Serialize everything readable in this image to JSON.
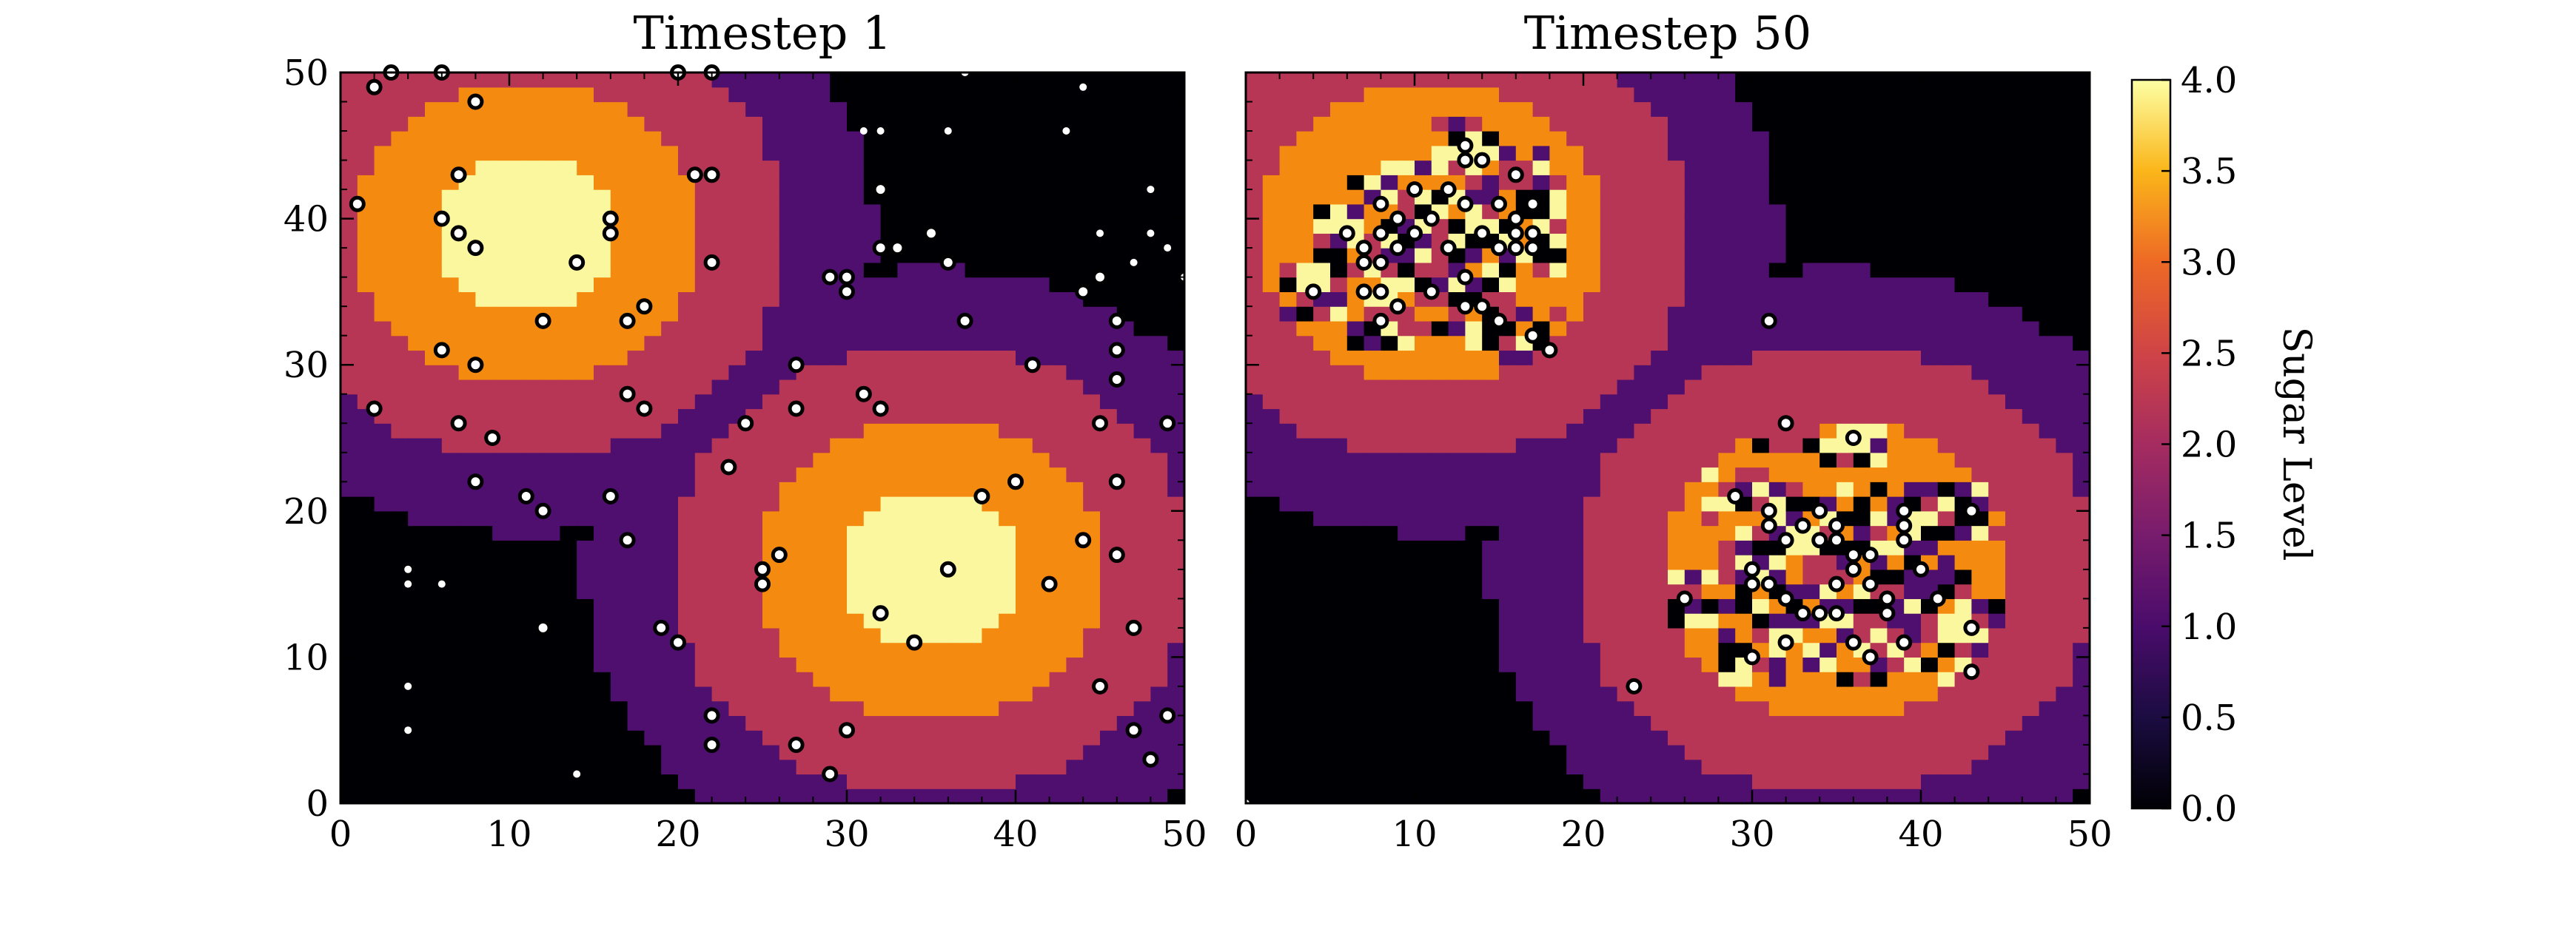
{
  "chart_data": {
    "type": "heatmap",
    "colormap": "inferno",
    "colorbar": {
      "label": "Sugar Level",
      "range": [
        0,
        4
      ],
      "tick_labels": [
        "0.0",
        "0.5",
        "1.0",
        "1.5",
        "2.0",
        "2.5",
        "3.0",
        "3.5",
        "4.0"
      ]
    },
    "panels": [
      {
        "title": "Timestep 1",
        "xlim": [
          0,
          50
        ],
        "ylim": [
          0,
          50
        ],
        "x_tick_labels": [
          "0",
          "10",
          "20",
          "30",
          "40",
          "50"
        ],
        "y_tick_labels": [
          "0",
          "10",
          "20",
          "30",
          "40",
          "50"
        ],
        "sugar_peaks": [
          [
            11,
            39
          ],
          [
            35,
            16
          ]
        ],
        "agents": [
          [
            2,
            49
          ],
          [
            3,
            50
          ],
          [
            6,
            50
          ],
          [
            8,
            48
          ],
          [
            20,
            50
          ],
          [
            22,
            50
          ],
          [
            7,
            43
          ],
          [
            21,
            43
          ],
          [
            22,
            43
          ],
          [
            1,
            41
          ],
          [
            6,
            40
          ],
          [
            16,
            40
          ],
          [
            7,
            39
          ],
          [
            16,
            39
          ],
          [
            8,
            38
          ],
          [
            14,
            37
          ],
          [
            22,
            37
          ],
          [
            12,
            33
          ],
          [
            17,
            33
          ],
          [
            18,
            34
          ],
          [
            6,
            31
          ],
          [
            8,
            30
          ],
          [
            17,
            28
          ],
          [
            18,
            27
          ],
          [
            2,
            27
          ],
          [
            7,
            26
          ],
          [
            9,
            25
          ],
          [
            8,
            22
          ],
          [
            16,
            21
          ],
          [
            11,
            21
          ],
          [
            12,
            20
          ],
          [
            17,
            18
          ],
          [
            12,
            12
          ],
          [
            19,
            12
          ],
          [
            20,
            11
          ],
          [
            22,
            6
          ],
          [
            22,
            4
          ],
          [
            27,
            30
          ],
          [
            27,
            27
          ],
          [
            24,
            26
          ],
          [
            23,
            23
          ],
          [
            29,
            36
          ],
          [
            30,
            36
          ],
          [
            30,
            35
          ],
          [
            31,
            28
          ],
          [
            32,
            27
          ],
          [
            32,
            42
          ],
          [
            32,
            38
          ],
          [
            33,
            38
          ],
          [
            35,
            39
          ],
          [
            36,
            37
          ],
          [
            37,
            33
          ],
          [
            41,
            30
          ],
          [
            45,
            36
          ],
          [
            44,
            35
          ],
          [
            46,
            33
          ],
          [
            46,
            31
          ],
          [
            46,
            29
          ],
          [
            45,
            26
          ],
          [
            49,
            26
          ],
          [
            38,
            21
          ],
          [
            40,
            22
          ],
          [
            46,
            22
          ],
          [
            44,
            18
          ],
          [
            46,
            17
          ],
          [
            25,
            16
          ],
          [
            25,
            15
          ],
          [
            26,
            17
          ],
          [
            36,
            16
          ],
          [
            42,
            15
          ],
          [
            32,
            13
          ],
          [
            34,
            11
          ],
          [
            47,
            12
          ],
          [
            45,
            8
          ],
          [
            49,
            6
          ],
          [
            47,
            5
          ],
          [
            48,
            3
          ],
          [
            30,
            5
          ],
          [
            27,
            4
          ],
          [
            29,
            2
          ]
        ],
        "small_dots": [
          [
            31,
            46
          ],
          [
            32,
            46
          ],
          [
            36,
            46
          ],
          [
            37,
            50
          ],
          [
            43,
            46
          ],
          [
            44,
            49
          ],
          [
            45,
            39
          ],
          [
            48,
            42
          ],
          [
            48,
            39
          ],
          [
            49,
            38
          ],
          [
            47,
            37
          ],
          [
            50,
            36
          ],
          [
            4,
            16
          ],
          [
            4,
            15
          ],
          [
            6,
            15
          ],
          [
            4,
            8
          ],
          [
            4,
            5
          ],
          [
            14,
            2
          ]
        ]
      },
      {
        "title": "Timestep 50",
        "xlim": [
          0,
          50
        ],
        "ylim": [
          0,
          50
        ],
        "x_tick_labels": [
          "0",
          "10",
          "20",
          "30",
          "40",
          "50"
        ],
        "y_tick_labels": [],
        "sugar_peaks": [
          [
            11,
            39
          ],
          [
            35,
            16
          ]
        ],
        "agents": [
          [
            13,
            45
          ],
          [
            13,
            44
          ],
          [
            14,
            44
          ],
          [
            16,
            43
          ],
          [
            10,
            42
          ],
          [
            12,
            42
          ],
          [
            8,
            41
          ],
          [
            13,
            41
          ],
          [
            15,
            41
          ],
          [
            17,
            41
          ],
          [
            9,
            40
          ],
          [
            11,
            40
          ],
          [
            16,
            40
          ],
          [
            6,
            39
          ],
          [
            8,
            39
          ],
          [
            10,
            39
          ],
          [
            14,
            39
          ],
          [
            16,
            39
          ],
          [
            17,
            39
          ],
          [
            9,
            38
          ],
          [
            12,
            38
          ],
          [
            7,
            38
          ],
          [
            15,
            38
          ],
          [
            17,
            38
          ],
          [
            16,
            38
          ],
          [
            8,
            37
          ],
          [
            7,
            37
          ],
          [
            13,
            36
          ],
          [
            4,
            35
          ],
          [
            7,
            35
          ],
          [
            8,
            35
          ],
          [
            11,
            35
          ],
          [
            9,
            34
          ],
          [
            13,
            34
          ],
          [
            14,
            34
          ],
          [
            15,
            33
          ],
          [
            8,
            33
          ],
          [
            17,
            32
          ],
          [
            18,
            31
          ],
          [
            31,
            33
          ],
          [
            32,
            26
          ],
          [
            36,
            25
          ],
          [
            29,
            21
          ],
          [
            31,
            20
          ],
          [
            34,
            20
          ],
          [
            39,
            20
          ],
          [
            43,
            20
          ],
          [
            31,
            19
          ],
          [
            33,
            19
          ],
          [
            35,
            19
          ],
          [
            39,
            19
          ],
          [
            32,
            18
          ],
          [
            34,
            18
          ],
          [
            35,
            18
          ],
          [
            39,
            18
          ],
          [
            36,
            17
          ],
          [
            37,
            17
          ],
          [
            30,
            16
          ],
          [
            36,
            16
          ],
          [
            40,
            16
          ],
          [
            30,
            15
          ],
          [
            31,
            15
          ],
          [
            35,
            15
          ],
          [
            37,
            15
          ],
          [
            26,
            14
          ],
          [
            32,
            14
          ],
          [
            38,
            14
          ],
          [
            41,
            14
          ],
          [
            33,
            13
          ],
          [
            34,
            13
          ],
          [
            35,
            13
          ],
          [
            38,
            13
          ],
          [
            43,
            12
          ],
          [
            32,
            11
          ],
          [
            36,
            11
          ],
          [
            39,
            11
          ],
          [
            30,
            10
          ],
          [
            37,
            10
          ],
          [
            43,
            9
          ],
          [
            23,
            8
          ]
        ],
        "small_dots": [
          [
            0,
            0
          ]
        ]
      }
    ]
  }
}
